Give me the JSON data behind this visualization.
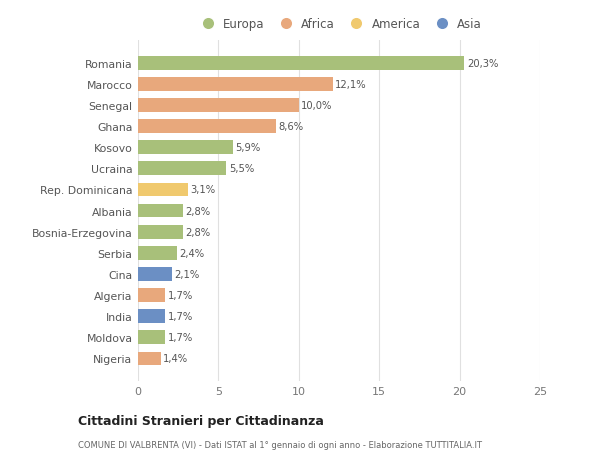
{
  "categories": [
    "Romania",
    "Marocco",
    "Senegal",
    "Ghana",
    "Kosovo",
    "Ucraina",
    "Rep. Dominicana",
    "Albania",
    "Bosnia-Erzegovina",
    "Serbia",
    "Cina",
    "Algeria",
    "India",
    "Moldova",
    "Nigeria"
  ],
  "values": [
    20.3,
    12.1,
    10.0,
    8.6,
    5.9,
    5.5,
    3.1,
    2.8,
    2.8,
    2.4,
    2.1,
    1.7,
    1.7,
    1.7,
    1.4
  ],
  "labels": [
    "20,3%",
    "12,1%",
    "10,0%",
    "8,6%",
    "5,9%",
    "5,5%",
    "3,1%",
    "2,8%",
    "2,8%",
    "2,4%",
    "2,1%",
    "1,7%",
    "1,7%",
    "1,7%",
    "1,4%"
  ],
  "continents": [
    "Europa",
    "Africa",
    "Africa",
    "Africa",
    "Europa",
    "Europa",
    "America",
    "Europa",
    "Europa",
    "Europa",
    "Asia",
    "Africa",
    "Asia",
    "Europa",
    "Africa"
  ],
  "colors": {
    "Europa": "#a8c07a",
    "Africa": "#e8a87c",
    "America": "#f0c96e",
    "Asia": "#6b8fc4"
  },
  "legend_order": [
    "Europa",
    "Africa",
    "America",
    "Asia"
  ],
  "title": "Cittadini Stranieri per Cittadinanza",
  "subtitle": "COMUNE DI VALBRENTA (VI) - Dati ISTAT al 1° gennaio di ogni anno - Elaborazione TUTTITALIA.IT",
  "xlim": [
    0,
    25
  ],
  "xticks": [
    0,
    5,
    10,
    15,
    20,
    25
  ],
  "background_color": "#ffffff",
  "grid_color": "#e0e0e0"
}
